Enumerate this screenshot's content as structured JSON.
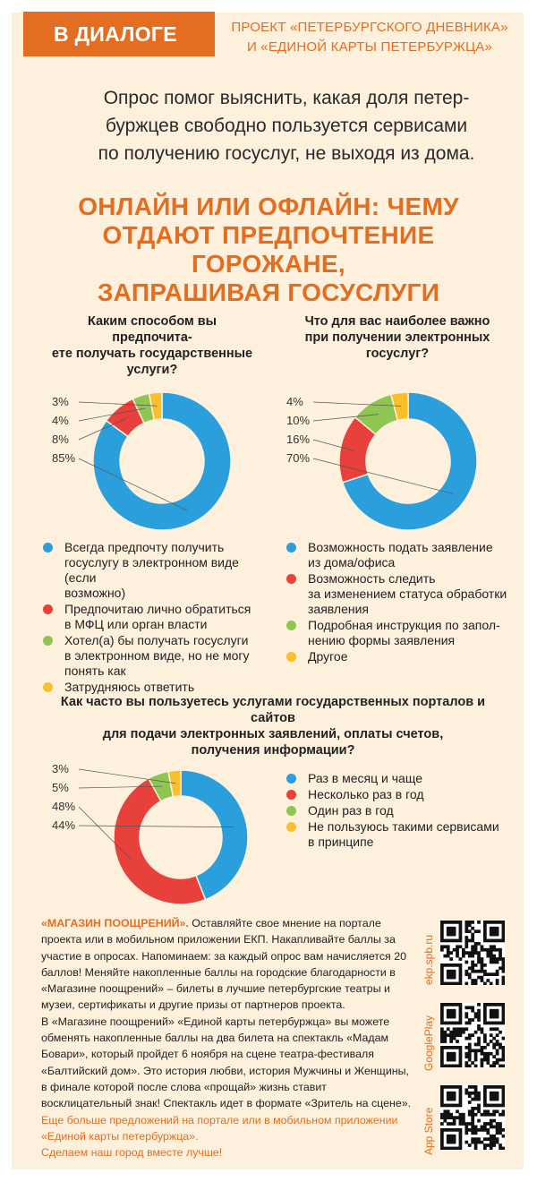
{
  "header": {
    "tag": "В ДИАЛОГЕ",
    "project_line1": "ПРОЕКТ «ПЕТЕРБУРГСКОГО ДНЕВНИКА»",
    "project_line2": "И «ЕДИНОЙ КАРТЫ ПЕТЕРБУРЖЦА»"
  },
  "intro": {
    "line1": "Опрос помог выяснить, какая доля петер-",
    "line2": "буржцев свободно пользуется сервисами",
    "line3": "по получению госуслуг, не выходя из дома."
  },
  "headline": {
    "line1": "ОНЛАЙН ИЛИ ОФЛАЙН: ЧЕМУ",
    "line2": "ОТДАЮТ ПРЕДПОЧТЕНИЕ ГОРОЖАНЕ,",
    "line3": "ЗАПРАШИВАЯ ГОСУСЛУГИ"
  },
  "colors": {
    "blue": "#2a9fdb",
    "red": "#e8403a",
    "green": "#8fc551",
    "yellow": "#fbbf2b",
    "orange": "#e36e21",
    "background": "#fdf0dc"
  },
  "chart_data": [
    {
      "type": "pie",
      "title": "Каким способом вы предпочитаете получать государственные услуги?",
      "title_lines": [
        "Каким способом вы предпочита-",
        "ете получать государственные",
        "услуги?"
      ],
      "slices": [
        {
          "label": "Всегда предпочту получить госуслугу в электронном виде (если возможно)",
          "value": 85,
          "value_label": "85%",
          "color": "#2a9fdb",
          "legend_lines": [
            "Всегда предпочту получить",
            "госуслугу в электронном виде (если",
            "возможно)"
          ]
        },
        {
          "label": "Предпочитаю лично обратиться в МФЦ или орган власти",
          "value": 8,
          "value_label": "8%",
          "color": "#e8403a",
          "legend_lines": [
            "Предпочитаю лично обратиться",
            "в МФЦ или орган власти"
          ]
        },
        {
          "label": "Хотел(а) бы получать госуслуги в электронном виде, но не могу понять как",
          "value": 4,
          "value_label": "4%",
          "color": "#8fc551",
          "legend_lines": [
            "Хотел(а) бы получать госуслуги",
            "в электронном виде, но не могу",
            "понять как"
          ]
        },
        {
          "label": "Затрудняюсь ответить",
          "value": 3,
          "value_label": "3%",
          "color": "#fbbf2b",
          "legend_lines": [
            "Затрудняюсь ответить"
          ]
        }
      ]
    },
    {
      "type": "pie",
      "title": "Что для вас наиболее важно при получении электронных госуслуг?",
      "title_lines": [
        "Что для вас наиболее важно",
        "при получении электронных",
        "госуслуг?"
      ],
      "slices": [
        {
          "label": "Возможность подать заявление из дома/офиса",
          "value": 70,
          "value_label": "70%",
          "color": "#2a9fdb",
          "legend_lines": [
            "Возможность подать заявление",
            "из дома/офиса"
          ]
        },
        {
          "label": "Возможность следить за изменением статуса обработки заявления",
          "value": 16,
          "value_label": "16%",
          "color": "#e8403a",
          "legend_lines": [
            "Возможность следить",
            "за изменением статуса обработки",
            "заявления"
          ]
        },
        {
          "label": "Подробная инструкция по заполнению формы заявления",
          "value": 10,
          "value_label": "10%",
          "color": "#8fc551",
          "legend_lines": [
            "Подробная инструкция по запол-",
            "нению формы заявления"
          ]
        },
        {
          "label": "Другое",
          "value": 4,
          "value_label": "4%",
          "color": "#fbbf2b",
          "legend_lines": [
            "Другое"
          ]
        }
      ]
    },
    {
      "type": "pie",
      "title": "Как часто вы пользуетесь услугами государственных порталов и сайтов для подачи электронных заявлений, оплаты счетов, получения информации?",
      "title_lines": [
        "Как часто вы пользуетесь услугами государственных порталов и сайтов",
        "для подачи электронных заявлений, оплаты счетов,",
        "получения информации?"
      ],
      "slices": [
        {
          "label": "Раз в месяц и чаще",
          "value": 44,
          "value_label": "44%",
          "color": "#2a9fdb",
          "legend_lines": [
            "Раз в месяц и чаще"
          ]
        },
        {
          "label": "Несколько раз в год",
          "value": 48,
          "value_label": "48%",
          "color": "#e8403a",
          "legend_lines": [
            "Несколько раз в год"
          ]
        },
        {
          "label": "Один раз в год",
          "value": 5,
          "value_label": "5%",
          "color": "#8fc551",
          "legend_lines": [
            "Один раз в год"
          ]
        },
        {
          "label": "Не пользуюсь такими сервисами в принципе",
          "value": 3,
          "value_label": "3%",
          "color": "#fbbf2b",
          "legend_lines": [
            "Не пользуюсь такими сервисами",
            "в принципе"
          ]
        }
      ]
    }
  ],
  "bottom": {
    "title": "«МАГАЗИН ПООЩРЕНИЙ».",
    "p1_rest": " Оставляйте свое мнение на портале проекта или в мобильном приложении ЕКП. Накапливайте баллы за участие в опросах. Напоминаем: за каждый опрос вам начисляется 20 баллов! Меняйте накопленные баллы на городские благодарности в «Магазине поощрений» – билеты в лучшие петербургские театры и музеи, сертификаты и другие призы от партнеров проекта.",
    "p2": "В «Магазине поощрений» «Единой карты петербуржца» вы можете обменять накопленные баллы на два билета на спектакль «Мадам Бовари», который пройдет 6 ноября на сцене театра-фестиваля «Балтийский дом». Это история любви, история Мужчины и Женщины, в финале которой после слова «прощай» жизнь ставит восклицательный знак! Спектакль идет в формате «Зритель на сцене».",
    "cta": "Еще больше предложений на портале или в мобильном приложении «Единой карты петербуржца».",
    "slogan": "Сделаем наш город вместе лучше!"
  },
  "qr": [
    {
      "label": "ekp.spb.ru",
      "icon": "qr-code-icon"
    },
    {
      "label": "GooglePlay",
      "icon": "qr-code-icon"
    },
    {
      "label": "App Store",
      "icon": "qr-code-icon"
    }
  ]
}
